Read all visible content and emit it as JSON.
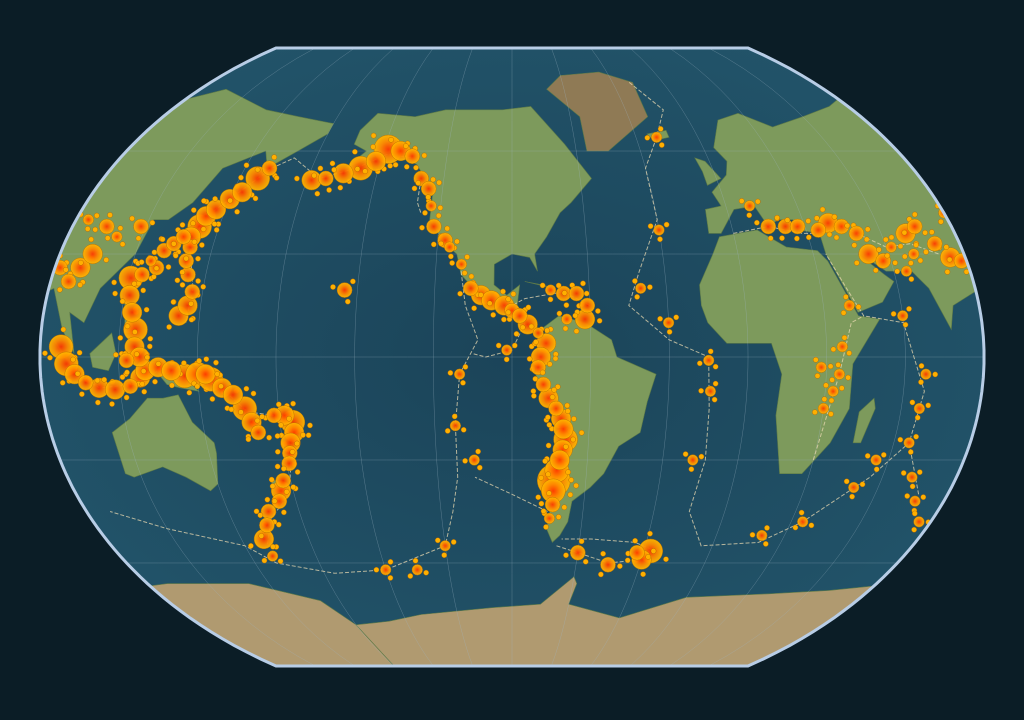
{
  "map": {
    "projection": "Kavrayskiy VII",
    "central_meridian": -90,
    "colors": {
      "background": "#0b1d26",
      "ocean": "#1f4d63",
      "ocean_deep": "#183f55",
      "land": "#7d9a5c",
      "land_high": "#a08a5c",
      "ice": "#b09a70",
      "graticule": "#9fb6c6",
      "outline": "#b8cde6",
      "plate_boundary": "#e8d8b0",
      "quake_outer": "#ffb000",
      "quake_inner": "#ff4a00"
    },
    "earthquakes": [
      [
        -178,
        51.5,
        6.5
      ],
      [
        -172,
        52,
        6
      ],
      [
        -165,
        53.5,
        6.5
      ],
      [
        -158,
        55,
        7
      ],
      [
        -152,
        57,
        6.5
      ],
      [
        -148,
        60.5,
        7.5
      ],
      [
        -142,
        60,
        6.5
      ],
      [
        -136,
        58.5,
        6
      ],
      [
        -130,
        52,
        6
      ],
      [
        -126,
        49,
        6
      ],
      [
        -124,
        44,
        5.5
      ],
      [
        -122,
        38,
        6
      ],
      [
        -117,
        34,
        6
      ],
      [
        -115,
        32,
        5.5
      ],
      [
        -110,
        27,
        5.5
      ],
      [
        -106,
        20,
        6
      ],
      [
        -102,
        18,
        6.5
      ],
      [
        -98,
        16.5,
        6.5
      ],
      [
        -93,
        15,
        6.5
      ],
      [
        -90,
        13.5,
        6
      ],
      [
        -87,
        12,
        6
      ],
      [
        -84,
        9.5,
        6.5
      ],
      [
        -80,
        7,
        5.5
      ],
      [
        -77,
        4,
        6.5
      ],
      [
        -79,
        0,
        6.5
      ],
      [
        -80,
        -3,
        6
      ],
      [
        -78,
        -8,
        6
      ],
      [
        -76,
        -12,
        6.5
      ],
      [
        -73,
        -15,
        6
      ],
      [
        -71,
        -18,
        6.5
      ],
      [
        -70,
        -21,
        6.5
      ],
      [
        -69,
        -24,
        7
      ],
      [
        -70,
        -27,
        6.5
      ],
      [
        -71,
        -30,
        6.5
      ],
      [
        -72,
        -33,
        7
      ],
      [
        -73,
        -36,
        8
      ],
      [
        -73,
        -39,
        7
      ],
      [
        -73,
        -43,
        6
      ],
      [
        -74,
        -47,
        5.5
      ],
      [
        -70,
        18.5,
        6
      ],
      [
        -65,
        18.5,
        6
      ],
      [
        -61,
        15,
        6
      ],
      [
        -62,
        11,
        6.5
      ],
      [
        -69,
        11,
        5.5
      ],
      [
        -75,
        19.5,
        5.5
      ],
      [
        -60,
        -57,
        6
      ],
      [
        -45,
        -60.5,
        6
      ],
      [
        -30,
        -59,
        6.5
      ],
      [
        -27,
        -56.5,
        7
      ],
      [
        -33,
        -57,
        6
      ],
      [
        -30,
        37,
        5.5
      ],
      [
        -30,
        10,
        5.5
      ],
      [
        -15,
        -1,
        5.5
      ],
      [
        -14,
        -10,
        5.5
      ],
      [
        -18,
        -30,
        5.5
      ],
      [
        -20,
        64,
        5.5
      ],
      [
        -40,
        20,
        5.5
      ],
      [
        -110,
        -5,
        5.5
      ],
      [
        -105,
        -30,
        5.5
      ],
      [
        -112,
        -20,
        5.5
      ],
      [
        -120,
        -55,
        5.5
      ],
      [
        -150,
        -62,
        5.5
      ],
      [
        -92,
        2,
        5.5
      ],
      [
        -155,
        19.5,
        6
      ],
      [
        -135,
        -62,
        5.5
      ],
      [
        10,
        44,
        5.5
      ],
      [
        15,
        38,
        6
      ],
      [
        22,
        38,
        6
      ],
      [
        27,
        38,
        6
      ],
      [
        35,
        37,
        6
      ],
      [
        40,
        39,
        6.5
      ],
      [
        45,
        38,
        6
      ],
      [
        50,
        36,
        6
      ],
      [
        52,
        30,
        6.5
      ],
      [
        57,
        28,
        6
      ],
      [
        62,
        32,
        5.5
      ],
      [
        70,
        36,
        6.5
      ],
      [
        75,
        38,
        6
      ],
      [
        80,
        33,
        6
      ],
      [
        84,
        29,
        6.5
      ],
      [
        88,
        28,
        6
      ],
      [
        70,
        30,
        5.5
      ],
      [
        65,
        25,
        5.5
      ],
      [
        40,
        15,
        5.5
      ],
      [
        36,
        3,
        5.5
      ],
      [
        35,
        -5,
        5.5
      ],
      [
        33,
        -10,
        5.5
      ],
      [
        30,
        -15,
        5.5
      ],
      [
        28,
        -3,
        5.5
      ],
      [
        68,
        -5,
        5.5
      ],
      [
        67,
        -15,
        5.5
      ],
      [
        66,
        -25,
        5.5
      ],
      [
        72,
        -35,
        5.5
      ],
      [
        78,
        -42,
        5.5
      ],
      [
        55,
        -30,
        5.5
      ],
      [
        50,
        -38,
        5.5
      ],
      [
        35,
        -48,
        5.5
      ],
      [
        20,
        -52,
        5.5
      ],
      [
        85,
        -48,
        5.5
      ],
      [
        60,
        12,
        5.5
      ],
      [
        92,
        26,
        6
      ],
      [
        97,
        22,
        6
      ],
      [
        100,
        26,
        6.5
      ],
      [
        103,
        30,
        6.5
      ],
      [
        98,
        3,
        7
      ],
      [
        100,
        -2,
        7
      ],
      [
        103,
        -5,
        6.5
      ],
      [
        107,
        -7.5,
        6
      ],
      [
        112,
        -9,
        6.5
      ],
      [
        118,
        -9.5,
        6.5
      ],
      [
        124,
        -8.5,
        6
      ],
      [
        128,
        -6,
        6.5
      ],
      [
        130,
        -4,
        6.5
      ],
      [
        121,
        23,
        7
      ],
      [
        122,
        18,
        6.5
      ],
      [
        124,
        13,
        6.5
      ],
      [
        126,
        8,
        7
      ],
      [
        126,
        3,
        6.5
      ],
      [
        128,
        0,
        6.5
      ],
      [
        123,
        -1,
        6
      ],
      [
        135,
        -3,
        6.5
      ],
      [
        140,
        -4,
        6.5
      ],
      [
        145,
        -5.5,
        7
      ],
      [
        150,
        -5,
        7
      ],
      [
        153,
        -5,
        6.5
      ],
      [
        155,
        -6.5,
        7
      ],
      [
        159,
        -9,
        6.5
      ],
      [
        163,
        -11,
        6.5
      ],
      [
        167,
        -15,
        7
      ],
      [
        169,
        -19,
        6.5
      ],
      [
        171,
        -22,
        6
      ],
      [
        178,
        -17,
        6
      ],
      [
        -178,
        -17,
        6.5
      ],
      [
        -175,
        -19,
        7
      ],
      [
        -175,
        -22,
        6.5
      ],
      [
        -177,
        -25,
        6.5
      ],
      [
        -178,
        -28,
        6
      ],
      [
        -179,
        -31,
        6
      ],
      [
        177,
        -36,
        6
      ],
      [
        175,
        -39,
        6.5
      ],
      [
        173,
        -42,
        6
      ],
      [
        167,
        -45,
        6
      ],
      [
        164,
        -49,
        6
      ],
      [
        160,
        -53,
        6.5
      ],
      [
        160,
        -58,
        5.5
      ],
      [
        142,
        12,
        6.5
      ],
      [
        145,
        15,
        6.5
      ],
      [
        146,
        19,
        6
      ],
      [
        143,
        24,
        6
      ],
      [
        141,
        28,
        6
      ],
      [
        141,
        32,
        6
      ],
      [
        140,
        35,
        6.5
      ],
      [
        142,
        38,
        7
      ],
      [
        143,
        41,
        6.5
      ],
      [
        146,
        43,
        6.5
      ],
      [
        150,
        46,
        6.5
      ],
      [
        154,
        48,
        6.5
      ],
      [
        158,
        52,
        7
      ],
      [
        161,
        55,
        6
      ],
      [
        131,
        31,
        6
      ],
      [
        134,
        33,
        6
      ],
      [
        137,
        35,
        6
      ],
      [
        130,
        26,
        6
      ],
      [
        127,
        28,
        5.5
      ],
      [
        125,
        24,
        6
      ],
      [
        118,
        38,
        6
      ],
      [
        110,
        35,
        5.5
      ],
      [
        104,
        38,
        6
      ],
      [
        90,
        42,
        5.5
      ],
      [
        95,
        40,
        5.5
      ]
    ]
  }
}
